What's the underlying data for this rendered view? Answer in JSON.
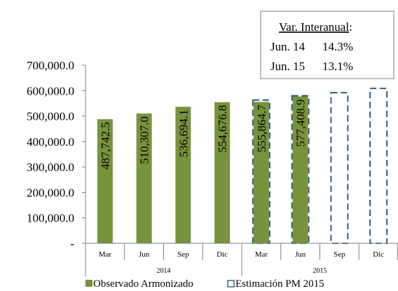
{
  "chart_data": {
    "type": "bar",
    "groups": [
      {
        "label": "2014",
        "categories": [
          "Mar",
          "Jun",
          "Sep",
          "Dic"
        ]
      },
      {
        "label": "2015",
        "categories": [
          "Mar",
          "Jun",
          "Sep",
          "Dic"
        ]
      }
    ],
    "series": [
      {
        "name": "Observado Armonizado",
        "color": "#77933c",
        "style": "solid",
        "values": [
          487742.5,
          510307.0,
          536694.1,
          554676.8,
          555864.7,
          577408.9,
          null,
          null
        ],
        "data_labels": [
          "487,742.5",
          "510,307.0",
          "536,694.1",
          "554,676.8",
          "555,864.7",
          "577,408.9",
          "",
          ""
        ]
      },
      {
        "name": "Estimación PM 2015",
        "color": "#1f4e79",
        "style": "dashed-outline",
        "values": [
          null,
          null,
          null,
          null,
          563000,
          580000,
          592000,
          609000
        ]
      }
    ],
    "y_ticks": [
      "-",
      "100,000.0",
      "200,000.0",
      "300,000.0",
      "400,000.0",
      "500,000.0",
      "600,000.0",
      "700,000.0"
    ],
    "ylim": [
      0,
      700000
    ],
    "legend_position": "bottom",
    "annotation": {
      "title": "Var. Interanual",
      "title_suffix": ":",
      "rows": [
        {
          "period": "Jun. 14",
          "value": "14.3%"
        },
        {
          "period": "Jun. 15",
          "value": "13.1%"
        }
      ]
    }
  }
}
